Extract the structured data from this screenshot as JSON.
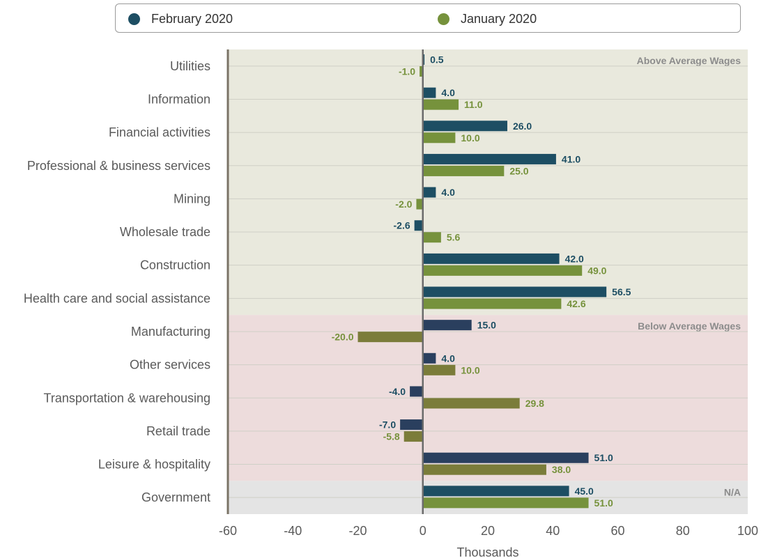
{
  "legend": {
    "items": [
      {
        "label": "February 2020",
        "color": "#1d4e63"
      },
      {
        "label": "January 2020",
        "color": "#76923c"
      }
    ]
  },
  "chart_data": {
    "type": "bar",
    "orientation": "horizontal",
    "categories": [
      "Utilities",
      "Information",
      "Financial activities",
      "Professional & business services",
      "Mining",
      "Wholesale trade",
      "Construction",
      "Health care and social assistance",
      "Manufacturing",
      "Other services",
      "Transportation & warehousing",
      "Retail trade",
      "Leisure & hospitality",
      "Government"
    ],
    "series": [
      {
        "name": "February 2020",
        "values": [
          0.5,
          4.0,
          26.0,
          41.0,
          4.0,
          -2.6,
          42.0,
          56.5,
          15.0,
          4.0,
          -4.0,
          -7.0,
          51.0,
          45.0
        ]
      },
      {
        "name": "January 2020",
        "values": [
          -1.0,
          11.0,
          10.0,
          25.0,
          -2.0,
          5.6,
          49.0,
          42.6,
          -20.0,
          10.0,
          29.8,
          -5.8,
          38.0,
          51.0
        ]
      }
    ],
    "value_labels": {
      "February 2020": [
        "0.5",
        "4.0",
        "26.0",
        "41.0",
        "4.0",
        "-2.6",
        "42.0",
        "56.5",
        "15.0",
        "4.0",
        "-4.0",
        "-7.0",
        "51.0",
        "45.0"
      ],
      "January 2020": [
        "-1.0",
        "11.0",
        "10.0",
        "25.0",
        "-2.0",
        "5.6",
        "49.0",
        "42.6",
        "-20.0",
        "10.0",
        "29.8",
        "-5.8",
        "38.0",
        "51.0"
      ]
    },
    "regions": [
      {
        "label": "Above Average Wages",
        "categories": [
          "Utilities",
          "Information",
          "Financial activities",
          "Professional & business services",
          "Mining",
          "Wholesale trade",
          "Construction",
          "Health care and social assistance"
        ],
        "color": "#e9e9dd"
      },
      {
        "label": "Below Average Wages",
        "categories": [
          "Manufacturing",
          "Other services",
          "Transportation & warehousing",
          "Retail trade",
          "Leisure & hospitality"
        ],
        "color": "#eddcdc"
      },
      {
        "label": "N/A",
        "categories": [
          "Government"
        ],
        "color": "#e4e4e4"
      }
    ],
    "xlabel": "Thousands",
    "xlim": [
      -60,
      100
    ],
    "xticks": [
      -60,
      -40,
      -20,
      0,
      20,
      40,
      60,
      80,
      100
    ],
    "legend_position": "top",
    "grid": true
  }
}
